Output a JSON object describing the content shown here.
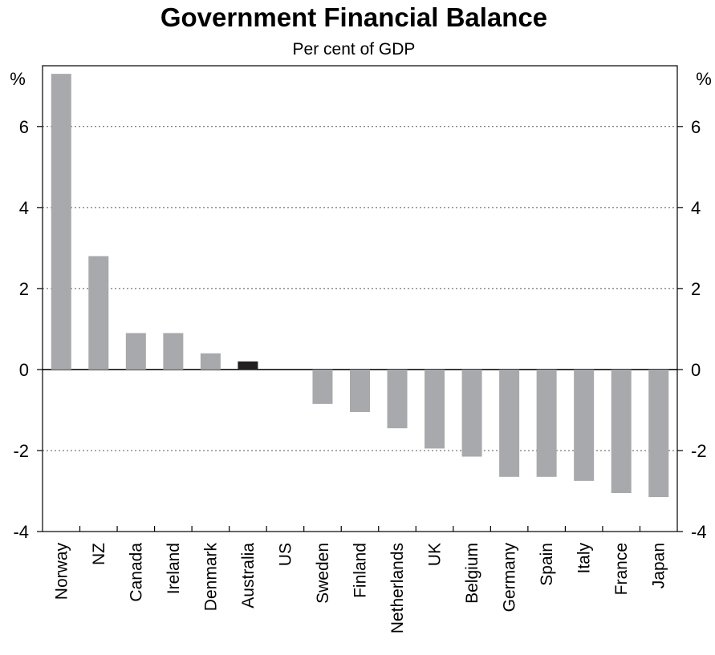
{
  "chart_data": {
    "type": "bar",
    "title": "Government Financial Balance",
    "subtitle": "Per cent of GDP",
    "ylabel_left": "%",
    "ylabel_right": "%",
    "ylim": [
      -4,
      7.5
    ],
    "yticks": [
      -4,
      -2,
      0,
      2,
      4,
      6
    ],
    "grid": "horizontal dotted",
    "categories": [
      "Norway",
      "NZ",
      "Canada",
      "Ireland",
      "Denmark",
      "Australia",
      "US",
      "Sweden",
      "Finland",
      "Netherlands",
      "UK",
      "Belgium",
      "Germany",
      "Spain",
      "Italy",
      "France",
      "Japan"
    ],
    "values": [
      7.3,
      2.8,
      0.9,
      0.9,
      0.4,
      0.2,
      0.0,
      -0.85,
      -1.05,
      -1.45,
      -1.95,
      -2.15,
      -2.65,
      -2.65,
      -2.75,
      -3.05,
      -3.15
    ],
    "highlight": "Australia",
    "colors": {
      "bar": "#a7a9ac",
      "highlight": "#231f20",
      "grid": "#555555",
      "axis": "#000000"
    }
  }
}
